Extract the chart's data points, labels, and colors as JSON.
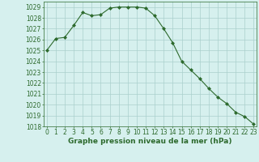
{
  "x": [
    0,
    1,
    2,
    3,
    4,
    5,
    6,
    7,
    8,
    9,
    10,
    11,
    12,
    13,
    14,
    15,
    16,
    17,
    18,
    19,
    20,
    21,
    22,
    23
  ],
  "y": [
    1025.0,
    1026.1,
    1026.2,
    1027.3,
    1028.5,
    1028.2,
    1028.3,
    1028.9,
    1029.0,
    1029.0,
    1029.0,
    1028.9,
    1028.2,
    1027.0,
    1025.7,
    1024.0,
    1023.2,
    1022.4,
    1021.5,
    1020.7,
    1020.1,
    1019.3,
    1018.9,
    1018.2
  ],
  "ylim": [
    1018,
    1029.5
  ],
  "yticks": [
    1018,
    1019,
    1020,
    1021,
    1022,
    1023,
    1024,
    1025,
    1026,
    1027,
    1028,
    1029
  ],
  "xticks": [
    0,
    1,
    2,
    3,
    4,
    5,
    6,
    7,
    8,
    9,
    10,
    11,
    12,
    13,
    14,
    15,
    16,
    17,
    18,
    19,
    20,
    21,
    22,
    23
  ],
  "xlabel": "Graphe pression niveau de la mer (hPa)",
  "line_color": "#2d6a2d",
  "marker": "D",
  "marker_size": 2.0,
  "bg_color": "#d6f0ee",
  "grid_color": "#aacfcc",
  "tick_color": "#2d6a2d",
  "xlabel_color": "#2d6a2d",
  "xlabel_fontsize": 6.5,
  "tick_fontsize": 5.5,
  "linewidth": 0.8
}
